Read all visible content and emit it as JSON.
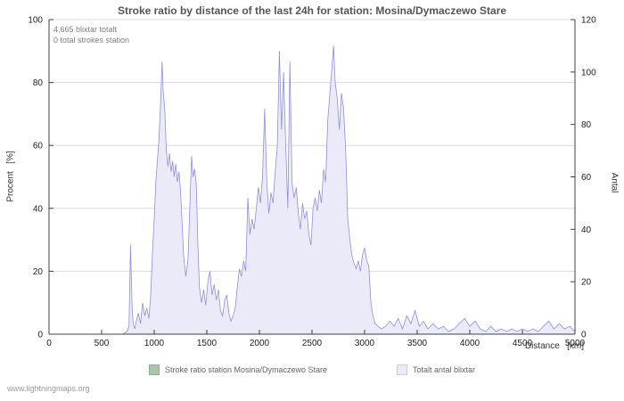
{
  "footer": {
    "watermark": "www.lightningmaps.org"
  },
  "chart_data": {
    "type": "area",
    "title": "Stroke ratio by distance of the last 24h for station: Mosina/Dymaczewo Stare",
    "xlabel": "Distance   [km]",
    "ylabel_left": "Procent   [%]",
    "ylabel_right": "Antal",
    "xlim": [
      0,
      5000
    ],
    "ylim_left": [
      0,
      100
    ],
    "ylim_right": [
      0,
      120
    ],
    "xticks": [
      0,
      500,
      1000,
      1500,
      2000,
      2500,
      3000,
      3500,
      4000,
      4500,
      5000
    ],
    "yticks_left": [
      0,
      20,
      40,
      60,
      80,
      100
    ],
    "yticks_right": [
      0,
      20,
      40,
      60,
      80,
      100,
      120
    ],
    "grid": true,
    "legend_position": "bottom",
    "annotations": [
      "4,665 blixtar totalt",
      "0 total strokes station"
    ],
    "colors": {
      "grid": "#dcdcdc",
      "axis": "#404040",
      "area_fill": "#eaeaf8",
      "area_line": "#9090d8",
      "ratio_line": "#a8c6a8"
    },
    "series": [
      {
        "name": "Stroke ratio station Mosina/Dymaczewo Stare",
        "axis": "left",
        "color": "#a8c6a8",
        "values_constant": 0
      },
      {
        "name": "Totalt antal blixtar",
        "axis": "right",
        "fill": "#eaeaf8",
        "line": "#9090d8",
        "x": [
          0,
          700,
          740,
          760,
          775,
          790,
          800,
          815,
          830,
          850,
          870,
          890,
          910,
          930,
          950,
          965,
          980,
          1000,
          1015,
          1030,
          1045,
          1060,
          1075,
          1085,
          1100,
          1115,
          1130,
          1145,
          1160,
          1175,
          1190,
          1205,
          1220,
          1235,
          1250,
          1265,
          1280,
          1300,
          1320,
          1340,
          1355,
          1370,
          1385,
          1400,
          1415,
          1430,
          1450,
          1470,
          1490,
          1510,
          1530,
          1550,
          1570,
          1590,
          1610,
          1630,
          1650,
          1670,
          1690,
          1710,
          1730,
          1750,
          1770,
          1790,
          1810,
          1830,
          1850,
          1870,
          1890,
          1910,
          1930,
          1950,
          1970,
          1990,
          2010,
          2030,
          2050,
          2070,
          2090,
          2110,
          2130,
          2150,
          2170,
          2190,
          2210,
          2230,
          2250,
          2270,
          2290,
          2310,
          2330,
          2350,
          2370,
          2390,
          2410,
          2430,
          2450,
          2470,
          2490,
          2510,
          2530,
          2550,
          2570,
          2590,
          2610,
          2630,
          2650,
          2670,
          2690,
          2705,
          2720,
          2740,
          2760,
          2780,
          2800,
          2820,
          2840,
          2860,
          2880,
          2900,
          2920,
          2940,
          2960,
          2980,
          3000,
          3020,
          3040,
          3060,
          3080,
          3100,
          3130,
          3160,
          3200,
          3240,
          3280,
          3320,
          3360,
          3400,
          3440,
          3480,
          3520,
          3560,
          3600,
          3650,
          3700,
          3750,
          3800,
          3850,
          3900,
          3950,
          4000,
          4050,
          4100,
          4150,
          4200,
          4250,
          4300,
          4350,
          4400,
          4450,
          4500,
          4550,
          4600,
          4650,
          4700,
          4750,
          4800,
          4850,
          4900,
          4950,
          5000
        ],
        "values": [
          0,
          0,
          1,
          3,
          34,
          10,
          4,
          2,
          5,
          8,
          4,
          12,
          7,
          10,
          6,
          14,
          28,
          44,
          58,
          66,
          74,
          88,
          104,
          93,
          86,
          70,
          64,
          69,
          62,
          66,
          60,
          65,
          58,
          62,
          55,
          42,
          30,
          22,
          28,
          50,
          68,
          60,
          63,
          57,
          34,
          18,
          12,
          17,
          11,
          20,
          24,
          15,
          19,
          13,
          17,
          9,
          7,
          13,
          15,
          8,
          5,
          7,
          10,
          18,
          25,
          22,
          28,
          24,
          52,
          38,
          44,
          40,
          48,
          56,
          50,
          60,
          86,
          58,
          46,
          54,
          50,
          62,
          72,
          108,
          78,
          100,
          72,
          48,
          104,
          58,
          52,
          56,
          46,
          40,
          50,
          44,
          47,
          38,
          34,
          48,
          52,
          47,
          55,
          50,
          63,
          58,
          82,
          92,
          102,
          110,
          96,
          90,
          78,
          92,
          86,
          70,
          44,
          36,
          30,
          27,
          25,
          28,
          24,
          30,
          33,
          28,
          26,
          12,
          7,
          4,
          3,
          2,
          3,
          5,
          3,
          6,
          2,
          7,
          4,
          9,
          3,
          5,
          2,
          4,
          2,
          3,
          1,
          2,
          4,
          6,
          3,
          5,
          2,
          1,
          3,
          1,
          2,
          1,
          2,
          1,
          2,
          1,
          2,
          1,
          3,
          5,
          2,
          4,
          2,
          3,
          1
        ]
      }
    ]
  }
}
